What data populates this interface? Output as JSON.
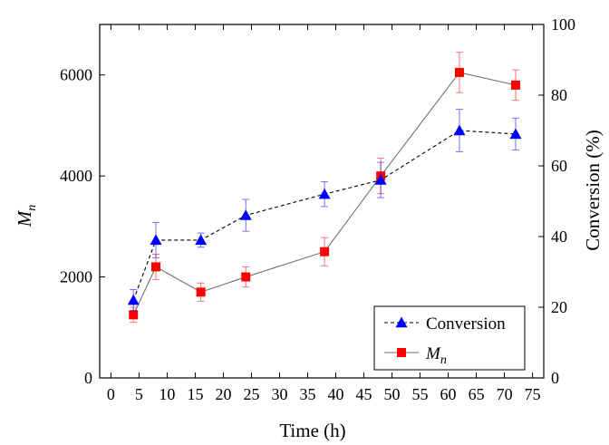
{
  "chart_data": {
    "type": "line",
    "xlabel": "Time (h)",
    "ylabel_left": "M",
    "ylabel_left_subscript": "n",
    "ylabel_right": "Conversion (%)",
    "x_ticks": [
      0,
      5,
      10,
      15,
      20,
      25,
      30,
      35,
      40,
      45,
      50,
      55,
      60,
      65,
      70,
      75
    ],
    "y_left_ticks": [
      0,
      2000,
      4000,
      6000
    ],
    "y_right_ticks": [
      0,
      20,
      40,
      60,
      80,
      100
    ],
    "xlim": [
      -2,
      77
    ],
    "ylim_left": [
      0,
      7000
    ],
    "ylim_right": [
      0,
      100
    ],
    "legend_position": "bottom-right",
    "series": [
      {
        "name": "Conversion",
        "axis": "right",
        "color": "#0000ff",
        "line_style": "dashed",
        "marker": "triangle",
        "x": [
          4,
          8,
          16,
          24,
          38,
          48,
          62,
          72
        ],
        "y": [
          22,
          39,
          39,
          46,
          52,
          56,
          70,
          69
        ],
        "err": [
          3,
          5,
          2,
          4.5,
          3.5,
          5,
          6,
          4.5
        ]
      },
      {
        "name": "M",
        "name_subscript": "n",
        "axis": "left",
        "color": "#ff0000",
        "line_style": "solid",
        "marker": "square",
        "x": [
          4,
          8,
          16,
          24,
          38,
          48,
          62,
          72
        ],
        "y": [
          1250,
          2200,
          1700,
          2000,
          2500,
          4000,
          6050,
          5800
        ],
        "err": [
          150,
          250,
          180,
          200,
          280,
          350,
          400,
          300
        ]
      }
    ]
  }
}
